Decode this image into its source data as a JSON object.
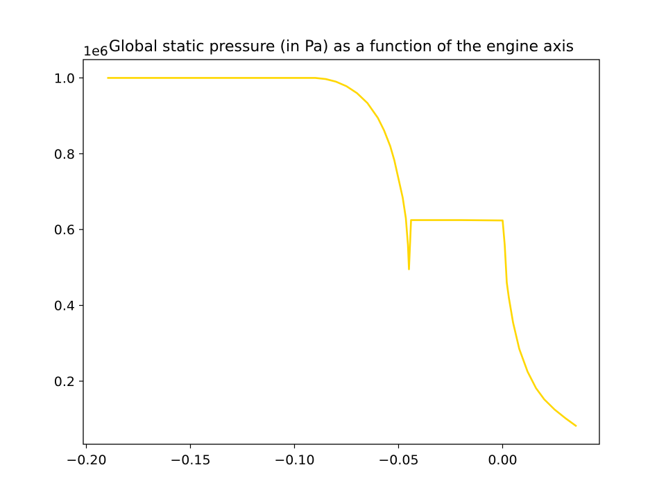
{
  "chart_data": {
    "type": "line",
    "title": "Global static pressure (in Pa) as a function of the engine axis",
    "xlabel": "",
    "ylabel": "",
    "y_offset_label": "1e6",
    "xlim": [
      -0.2015,
      0.0465
    ],
    "ylim": [
      0.0336,
      1.0483
    ],
    "y_scale_factor": 1000000,
    "x_ticks": [
      -0.2,
      -0.15,
      -0.1,
      -0.05,
      0.0
    ],
    "x_tick_labels": [
      "−0.20",
      "−0.15",
      "−0.10",
      "−0.05",
      "0.00"
    ],
    "y_ticks": [
      0.2,
      0.4,
      0.6,
      0.8,
      1.0
    ],
    "y_tick_labels": [
      "0.2",
      "0.4",
      "0.6",
      "0.8",
      "1.0"
    ],
    "grid": false,
    "series": [
      {
        "color": "#FFD700",
        "x": [
          -0.19,
          -0.15,
          -0.11,
          -0.09,
          -0.085,
          -0.08,
          -0.075,
          -0.07,
          -0.065,
          -0.06,
          -0.057,
          -0.054,
          -0.052,
          -0.05,
          -0.048,
          -0.0465,
          -0.0455,
          -0.045,
          -0.044,
          -0.02,
          -0.001,
          0.0,
          0.001,
          0.002,
          0.003,
          0.005,
          0.008,
          0.012,
          0.016,
          0.02,
          0.025,
          0.03,
          0.0355
        ],
        "y": [
          1.0,
          1.0,
          1.0,
          1.0,
          0.997,
          0.99,
          0.978,
          0.96,
          0.934,
          0.895,
          0.862,
          0.82,
          0.782,
          0.733,
          0.684,
          0.63,
          0.56,
          0.495,
          0.625,
          0.625,
          0.624,
          0.624,
          0.56,
          0.46,
          0.42,
          0.355,
          0.285,
          0.225,
          0.182,
          0.152,
          0.125,
          0.103,
          0.081
        ]
      }
    ]
  }
}
